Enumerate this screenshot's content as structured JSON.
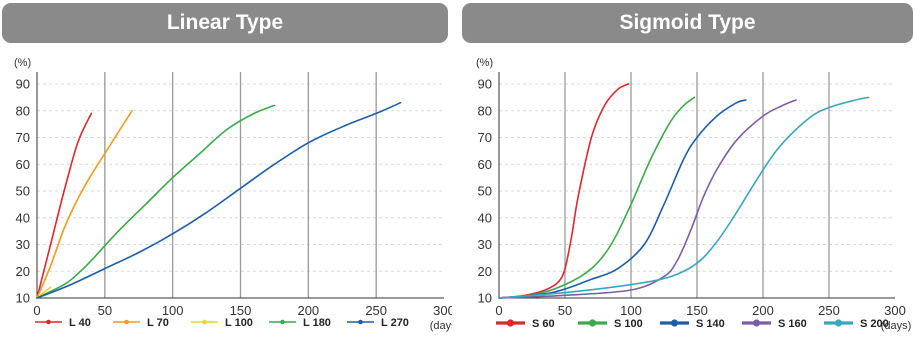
{
  "chart_data": [
    {
      "type": "line",
      "title": "Linear Type",
      "ylabel": "(%)",
      "xlabel": "(days)",
      "xlim": [
        0,
        300
      ],
      "ylim": [
        10,
        90
      ],
      "xticks": [
        0,
        50,
        100,
        150,
        200,
        250,
        300
      ],
      "yticks": [
        10,
        20,
        30,
        40,
        50,
        60,
        70,
        80,
        90
      ],
      "grid": "vertical",
      "legend": "bottom",
      "series": [
        {
          "name": "L 40",
          "color": "#e0262c",
          "marker": "dot",
          "x": [
            0,
            10,
            20,
            30,
            40
          ],
          "y": [
            10,
            30,
            50,
            68,
            79
          ]
        },
        {
          "name": "L 70",
          "color": "#f39a1d",
          "marker": "dot",
          "x": [
            0,
            10,
            20,
            30,
            40,
            50,
            60,
            70
          ],
          "y": [
            10,
            22,
            36,
            47,
            56,
            64,
            72,
            80
          ]
        },
        {
          "name": "L 100",
          "color": "#f1d42a",
          "marker": "dot",
          "x": [
            0,
            10
          ],
          "y": [
            10,
            14
          ]
        },
        {
          "name": "L 180",
          "color": "#3aaa4a",
          "marker": "dot",
          "x": [
            0,
            20,
            30,
            40,
            60,
            80,
            100,
            120,
            140,
            160,
            175
          ],
          "y": [
            10,
            15,
            19,
            24,
            35,
            45,
            55,
            64,
            73,
            79,
            82
          ]
        },
        {
          "name": "L 270",
          "color": "#1c5ea8",
          "marker": "dot",
          "x": [
            0,
            25,
            50,
            75,
            100,
            125,
            150,
            175,
            200,
            225,
            250,
            268
          ],
          "y": [
            10,
            15,
            21,
            27,
            34,
            42,
            51,
            60,
            68,
            74,
            79,
            83
          ]
        }
      ]
    },
    {
      "type": "line",
      "title": "Sigmoid Type",
      "ylabel": "(%)",
      "xlabel": "(days)",
      "xlim": [
        0,
        300
      ],
      "ylim": [
        10,
        90
      ],
      "xticks": [
        0,
        50,
        100,
        150,
        200,
        250,
        300
      ],
      "yticks": [
        10,
        20,
        30,
        40,
        50,
        60,
        70,
        80,
        90
      ],
      "grid": "vertical",
      "legend": "bottom",
      "series": [
        {
          "name": "S 60",
          "color": "#e0262c",
          "marker": "dot",
          "x": [
            0,
            20,
            35,
            45,
            50,
            55,
            60,
            70,
            80,
            90,
            98
          ],
          "y": [
            10,
            11,
            13,
            16,
            21,
            33,
            48,
            70,
            82,
            88,
            90
          ]
        },
        {
          "name": "S 100",
          "color": "#3aaa4a",
          "marker": "dot",
          "x": [
            0,
            25,
            50,
            70,
            85,
            100,
            115,
            130,
            140,
            148
          ],
          "y": [
            10,
            11,
            15,
            21,
            30,
            45,
            62,
            76,
            82,
            85
          ]
        },
        {
          "name": "S 140",
          "color": "#1c5ea8",
          "marker": "dot",
          "x": [
            0,
            40,
            70,
            90,
            110,
            125,
            140,
            150,
            165,
            180,
            187
          ],
          "y": [
            10,
            12,
            17,
            21,
            30,
            45,
            62,
            70,
            78,
            83,
            84
          ]
        },
        {
          "name": "S 160",
          "color": "#7a5fa6",
          "marker": "dot",
          "x": [
            0,
            50,
            100,
            125,
            135,
            145,
            155,
            165,
            180,
            200,
            215,
            225
          ],
          "y": [
            10,
            11,
            13,
            18,
            24,
            35,
            48,
            58,
            69,
            78,
            82,
            84
          ]
        },
        {
          "name": "S 200",
          "color": "#39a7bb",
          "marker": "dot",
          "x": [
            0,
            50,
            100,
            130,
            150,
            165,
            180,
            195,
            210,
            225,
            240,
            255,
            270,
            280
          ],
          "y": [
            10,
            12,
            15,
            18,
            23,
            31,
            42,
            54,
            65,
            73,
            79,
            82,
            84,
            85
          ]
        }
      ]
    }
  ]
}
